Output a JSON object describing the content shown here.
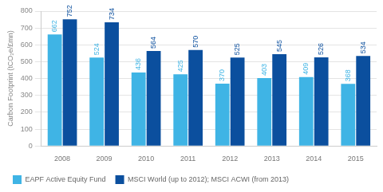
{
  "chart_data": {
    "type": "bar",
    "categories": [
      "2008",
      "2009",
      "2010",
      "2011",
      "2012",
      "2013",
      "2014",
      "2015"
    ],
    "series": [
      {
        "name": "EAPF Active Equity Fund",
        "color": "#3fb4e5",
        "values": [
          662,
          524,
          436,
          425,
          370,
          403,
          409,
          368
        ]
      },
      {
        "name": "MSCI World (up to 2012); MSCI ACWI (from 2013)",
        "color": "#0b4f9e",
        "values": [
          752,
          734,
          564,
          570,
          525,
          545,
          526,
          534
        ]
      }
    ],
    "y_label": "Carbon Footprint (tCO₂e/£mn)",
    "ylim": [
      0,
      800
    ],
    "yticks": [
      0,
      100,
      200,
      300,
      400,
      500,
      600,
      700,
      800
    ],
    "grid": true,
    "legend": "bottom",
    "data_labels": true
  }
}
